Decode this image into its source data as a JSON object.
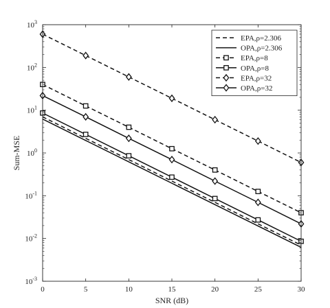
{
  "chart_data": {
    "type": "line",
    "title": "",
    "xlabel": "SNR (dB)",
    "ylabel": "Sum-MSE",
    "xlim": [
      0,
      30
    ],
    "ylim": [
      0.001,
      1000
    ],
    "yscale": "log",
    "grid": false,
    "legend_position": "top-right",
    "x": [
      0,
      5,
      10,
      15,
      20,
      25,
      30
    ],
    "x_ticks": [
      "0",
      "5",
      "10",
      "15",
      "20",
      "25",
      "30"
    ],
    "y_ticks": [
      {
        "base": "10",
        "exp": "-3"
      },
      {
        "base": "10",
        "exp": "-2"
      },
      {
        "base": "10",
        "exp": "-1"
      },
      {
        "base": "10",
        "exp": "0"
      },
      {
        "base": "10",
        "exp": "1"
      },
      {
        "base": "10",
        "exp": "2"
      },
      {
        "base": "10",
        "exp": "3"
      }
    ],
    "series": [
      {
        "name": "EPA,ρ=2.306",
        "line": "dashed",
        "marker": "none",
        "values": [
          7.0,
          2.2,
          0.7,
          0.22,
          0.07,
          0.022,
          0.007
        ]
      },
      {
        "name": "OPA,ρ=2.306",
        "line": "solid",
        "marker": "none",
        "values": [
          6.2,
          1.96,
          0.62,
          0.196,
          0.062,
          0.0196,
          0.0062
        ]
      },
      {
        "name": "EPA,ρ=8",
        "line": "dashed",
        "marker": "square",
        "values": [
          40,
          12.6,
          4.0,
          1.26,
          0.4,
          0.126,
          0.04
        ]
      },
      {
        "name": "OPA,ρ=8",
        "line": "solid",
        "marker": "square",
        "values": [
          8.6,
          2.72,
          0.86,
          0.272,
          0.086,
          0.0272,
          0.0086
        ]
      },
      {
        "name": "EPA,ρ=32",
        "line": "dashed",
        "marker": "diamond",
        "values": [
          600,
          190,
          60,
          19,
          6.0,
          1.9,
          0.6
        ]
      },
      {
        "name": "OPA,ρ=32",
        "line": "solid",
        "marker": "diamond",
        "values": [
          22,
          7.0,
          2.2,
          0.7,
          0.22,
          0.07,
          0.022
        ]
      }
    ]
  }
}
